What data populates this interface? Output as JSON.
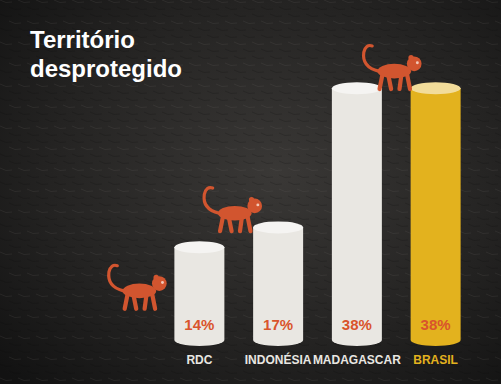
{
  "chart_data": {
    "type": "bar",
    "title": "Território desprotegido",
    "categories": [
      "RDC",
      "INDONÉSIA",
      "MADAGASCAR",
      "BRASIL"
    ],
    "values": [
      14,
      17,
      38,
      38
    ],
    "value_labels": [
      "14%",
      "17%",
      "38%",
      "38%"
    ],
    "colors": [
      "#e9e7e2",
      "#e9e7e2",
      "#e9e7e2",
      "#e3b21e"
    ],
    "ylim": [
      0,
      40
    ],
    "data_labels": true,
    "tick_labels": "x",
    "grid": false
  }
}
